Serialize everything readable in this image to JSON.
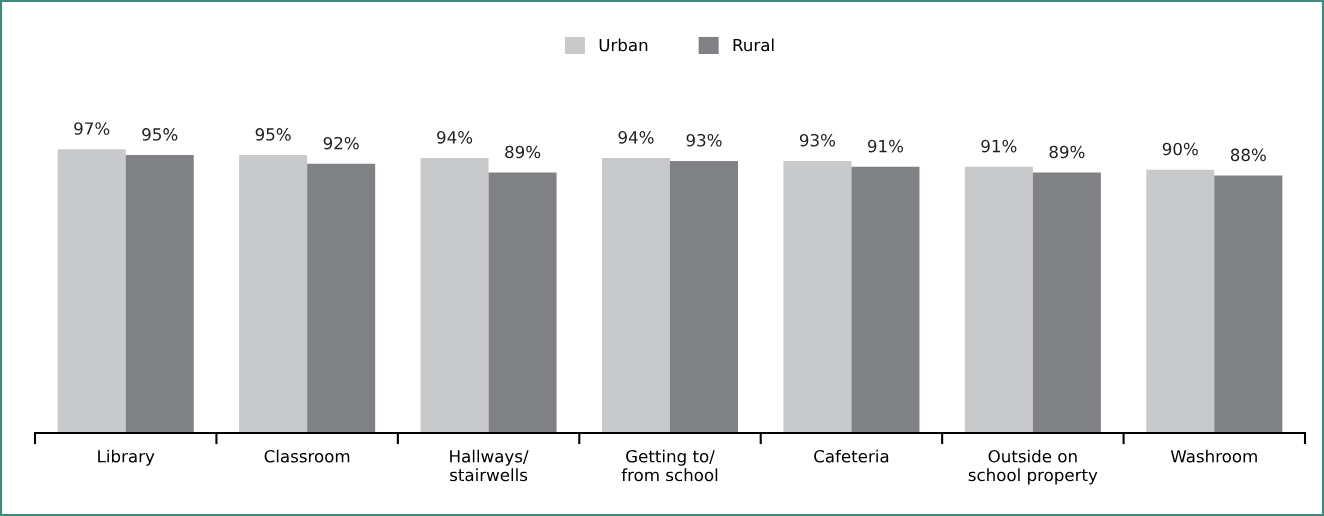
{
  "chart_data": {
    "type": "bar",
    "categories": [
      "Library",
      "Classroom",
      "Hallways/\nstairwells",
      "Getting to/\nfrom school",
      "Cafeteria",
      "Outside on\nschool property",
      "Washroom"
    ],
    "series": [
      {
        "name": "Urban",
        "color": "#c8c9cb",
        "values": [
          97,
          95,
          94,
          94,
          93,
          91,
          90
        ],
        "value_labels": [
          "97%",
          "95%",
          "94%",
          "94%",
          "93%",
          "91%",
          "90%"
        ]
      },
      {
        "name": "Rural",
        "color": "#808184",
        "values": [
          95,
          92,
          89,
          93,
          91,
          89,
          88
        ],
        "value_labels": [
          "95%",
          "92%",
          "89%",
          "93%",
          "91%",
          "89%",
          "88%"
        ]
      }
    ],
    "tick_labels": "x",
    "legend": "top",
    "grid": false
  }
}
